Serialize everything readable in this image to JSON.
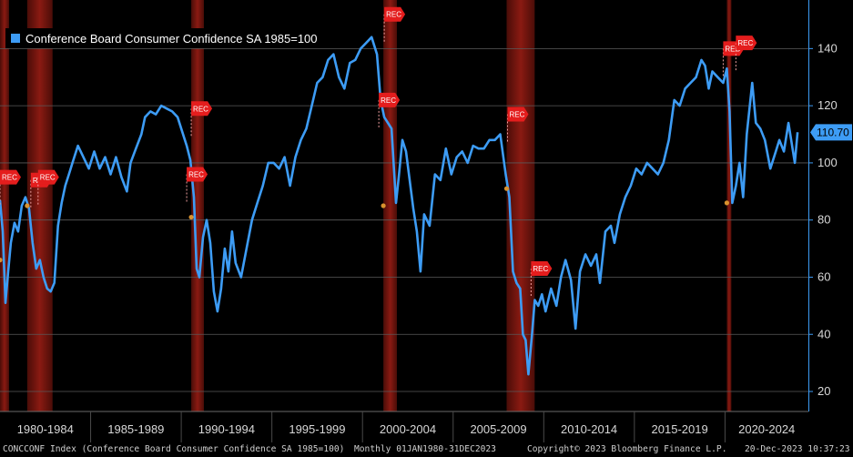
{
  "legend": {
    "label": "Conference Board Consumer Confidence SA 1985=100",
    "color": "#3d9cf5"
  },
  "last_value_label": "110.70",
  "footer": {
    "ticker": "CONCCONF Index (Conference Board Consumer Confidence SA 1985=100)",
    "period": "Monthly 01JAN1980-31DEC2023",
    "copyright": "Copyright© 2023 Bloomberg Finance L.P.",
    "timestamp": "20-Dec-2023 10:37:23"
  },
  "chart_data": {
    "type": "line",
    "title": "",
    "xlabel": "",
    "ylabel": "",
    "ylim": [
      13,
      157
    ],
    "xlim": [
      1980.0,
      2024.6
    ],
    "yticks": [
      20,
      40,
      60,
      80,
      100,
      120,
      140
    ],
    "x_tick_labels": [
      "1980-1984",
      "1985-1989",
      "1990-1994",
      "1995-1999",
      "2000-2004",
      "2005-2009",
      "2010-2014",
      "2015-2019",
      "2020-2024"
    ],
    "grid": true,
    "legend_position": "top-left",
    "y_axis_side": "right",
    "series": [
      {
        "name": "Conference Board Consumer Confidence SA 1985=100",
        "color": "#3d9cf5",
        "points": [
          [
            1980.0,
            87
          ],
          [
            1980.15,
            76
          ],
          [
            1980.3,
            51
          ],
          [
            1980.45,
            62
          ],
          [
            1980.6,
            72
          ],
          [
            1980.8,
            79
          ],
          [
            1981.0,
            76
          ],
          [
            1981.2,
            85
          ],
          [
            1981.4,
            88
          ],
          [
            1981.6,
            84
          ],
          [
            1981.8,
            72
          ],
          [
            1982.0,
            63
          ],
          [
            1982.2,
            66
          ],
          [
            1982.4,
            60
          ],
          [
            1982.6,
            56
          ],
          [
            1982.8,
            55
          ],
          [
            1983.0,
            58
          ],
          [
            1983.2,
            78
          ],
          [
            1983.4,
            86
          ],
          [
            1983.6,
            92
          ],
          [
            1983.8,
            96
          ],
          [
            1984.0,
            100
          ],
          [
            1984.3,
            106
          ],
          [
            1984.6,
            102
          ],
          [
            1984.9,
            98
          ],
          [
            1985.2,
            104
          ],
          [
            1985.5,
            98
          ],
          [
            1985.8,
            102
          ],
          [
            1986.1,
            96
          ],
          [
            1986.4,
            102
          ],
          [
            1986.7,
            95
          ],
          [
            1987.0,
            90
          ],
          [
            1987.2,
            100
          ],
          [
            1987.5,
            105
          ],
          [
            1987.8,
            110
          ],
          [
            1988.0,
            116
          ],
          [
            1988.3,
            118
          ],
          [
            1988.6,
            117
          ],
          [
            1988.9,
            120
          ],
          [
            1989.2,
            119
          ],
          [
            1989.5,
            118
          ],
          [
            1989.8,
            116
          ],
          [
            1990.0,
            112
          ],
          [
            1990.3,
            106
          ],
          [
            1990.5,
            101
          ],
          [
            1990.7,
            88
          ],
          [
            1990.85,
            63
          ],
          [
            1991.0,
            60
          ],
          [
            1991.2,
            74
          ],
          [
            1991.4,
            80
          ],
          [
            1991.6,
            72
          ],
          [
            1991.8,
            55
          ],
          [
            1992.0,
            48
          ],
          [
            1992.2,
            56
          ],
          [
            1992.4,
            70
          ],
          [
            1992.6,
            62
          ],
          [
            1992.8,
            76
          ],
          [
            1993.0,
            65
          ],
          [
            1993.3,
            60
          ],
          [
            1993.6,
            70
          ],
          [
            1993.9,
            80
          ],
          [
            1994.2,
            86
          ],
          [
            1994.5,
            92
          ],
          [
            1994.8,
            100
          ],
          [
            1995.1,
            100
          ],
          [
            1995.4,
            98
          ],
          [
            1995.7,
            102
          ],
          [
            1996.0,
            92
          ],
          [
            1996.3,
            102
          ],
          [
            1996.6,
            108
          ],
          [
            1996.9,
            112
          ],
          [
            1997.2,
            120
          ],
          [
            1997.5,
            128
          ],
          [
            1997.8,
            130
          ],
          [
            1998.1,
            136
          ],
          [
            1998.4,
            138
          ],
          [
            1998.7,
            130
          ],
          [
            1999.0,
            126
          ],
          [
            1999.3,
            135
          ],
          [
            1999.6,
            136
          ],
          [
            1999.9,
            140
          ],
          [
            2000.2,
            142
          ],
          [
            2000.5,
            144
          ],
          [
            2000.8,
            138
          ],
          [
            2001.0,
            122
          ],
          [
            2001.2,
            116
          ],
          [
            2001.4,
            114
          ],
          [
            2001.6,
            112
          ],
          [
            2001.85,
            86
          ],
          [
            2002.0,
            95
          ],
          [
            2002.2,
            108
          ],
          [
            2002.4,
            104
          ],
          [
            2002.6,
            94
          ],
          [
            2002.8,
            84
          ],
          [
            2003.0,
            76
          ],
          [
            2003.2,
            62
          ],
          [
            2003.4,
            82
          ],
          [
            2003.7,
            78
          ],
          [
            2004.0,
            96
          ],
          [
            2004.3,
            94
          ],
          [
            2004.6,
            105
          ],
          [
            2004.9,
            96
          ],
          [
            2005.2,
            102
          ],
          [
            2005.5,
            104
          ],
          [
            2005.8,
            100
          ],
          [
            2006.1,
            106
          ],
          [
            2006.4,
            105
          ],
          [
            2006.7,
            105
          ],
          [
            2007.0,
            108
          ],
          [
            2007.3,
            108
          ],
          [
            2007.6,
            110
          ],
          [
            2007.9,
            96
          ],
          [
            2008.1,
            88
          ],
          [
            2008.3,
            62
          ],
          [
            2008.5,
            58
          ],
          [
            2008.7,
            56
          ],
          [
            2008.85,
            40
          ],
          [
            2009.0,
            38
          ],
          [
            2009.15,
            26
          ],
          [
            2009.35,
            40
          ],
          [
            2009.5,
            52
          ],
          [
            2009.7,
            50
          ],
          [
            2009.9,
            54
          ],
          [
            2010.1,
            48
          ],
          [
            2010.4,
            56
          ],
          [
            2010.7,
            50
          ],
          [
            2010.95,
            60
          ],
          [
            2011.2,
            66
          ],
          [
            2011.5,
            59
          ],
          [
            2011.75,
            42
          ],
          [
            2012.0,
            62
          ],
          [
            2012.3,
            68
          ],
          [
            2012.6,
            64
          ],
          [
            2012.9,
            68
          ],
          [
            2013.1,
            58
          ],
          [
            2013.4,
            76
          ],
          [
            2013.7,
            78
          ],
          [
            2013.9,
            72
          ],
          [
            2014.2,
            82
          ],
          [
            2014.5,
            88
          ],
          [
            2014.8,
            92
          ],
          [
            2015.1,
            98
          ],
          [
            2015.4,
            96
          ],
          [
            2015.7,
            100
          ],
          [
            2016.0,
            98
          ],
          [
            2016.3,
            96
          ],
          [
            2016.6,
            100
          ],
          [
            2016.9,
            108
          ],
          [
            2017.2,
            122
          ],
          [
            2017.5,
            120
          ],
          [
            2017.8,
            126
          ],
          [
            2018.1,
            128
          ],
          [
            2018.4,
            130
          ],
          [
            2018.7,
            136
          ],
          [
            2018.9,
            134
          ],
          [
            2019.1,
            126
          ],
          [
            2019.3,
            132
          ],
          [
            2019.6,
            130
          ],
          [
            2019.9,
            128
          ],
          [
            2020.1,
            133
          ],
          [
            2020.25,
            118
          ],
          [
            2020.4,
            86
          ],
          [
            2020.6,
            92
          ],
          [
            2020.8,
            100
          ],
          [
            2021.0,
            88
          ],
          [
            2021.2,
            110
          ],
          [
            2021.4,
            122
          ],
          [
            2021.5,
            128
          ],
          [
            2021.7,
            114
          ],
          [
            2021.95,
            112
          ],
          [
            2022.2,
            108
          ],
          [
            2022.5,
            98
          ],
          [
            2022.8,
            104
          ],
          [
            2023.0,
            108
          ],
          [
            2023.25,
            104
          ],
          [
            2023.5,
            114
          ],
          [
            2023.75,
            104
          ],
          [
            2023.85,
            100
          ],
          [
            2024.0,
            110.7
          ]
        ]
      }
    ],
    "recessions": [
      {
        "label": "REC",
        "start": 1980.0,
        "end": 1980.5,
        "marker_value": 66
      },
      {
        "label": "REC",
        "start": 1981.5,
        "end": 1982.9,
        "marker_value": 85
      },
      {
        "label": "REC",
        "start": 1990.55,
        "end": 1991.25,
        "marker_value": 81
      },
      {
        "label": "REC",
        "start": 2001.15,
        "end": 2001.9,
        "marker_value": 85
      },
      {
        "label": "REC",
        "start": 2007.95,
        "end": 2009.5,
        "marker_value": 91
      },
      {
        "label": "REC",
        "start": 2020.1,
        "end": 2020.35,
        "marker_value": 86
      }
    ],
    "recession_flags": [
      {
        "label": "REC",
        "x": 1980.0,
        "y": 95
      },
      {
        "label": "REC",
        "x": 1981.7,
        "y": 94
      },
      {
        "label": "REC",
        "x": 1982.1,
        "y": 95
      },
      {
        "label": "REC",
        "x": 1990.3,
        "y": 96
      },
      {
        "label": "REC",
        "x": 1990.55,
        "y": 119
      },
      {
        "label": "REC",
        "x": 2000.9,
        "y": 122
      },
      {
        "label": "REC",
        "x": 2001.2,
        "y": 152
      },
      {
        "label": "REC",
        "x": 2008.0,
        "y": 117
      },
      {
        "label": "REC",
        "x": 2009.3,
        "y": 63
      },
      {
        "label": "REC",
        "x": 2019.9,
        "y": 140
      },
      {
        "label": "REC",
        "x": 2020.6,
        "y": 142
      }
    ]
  }
}
